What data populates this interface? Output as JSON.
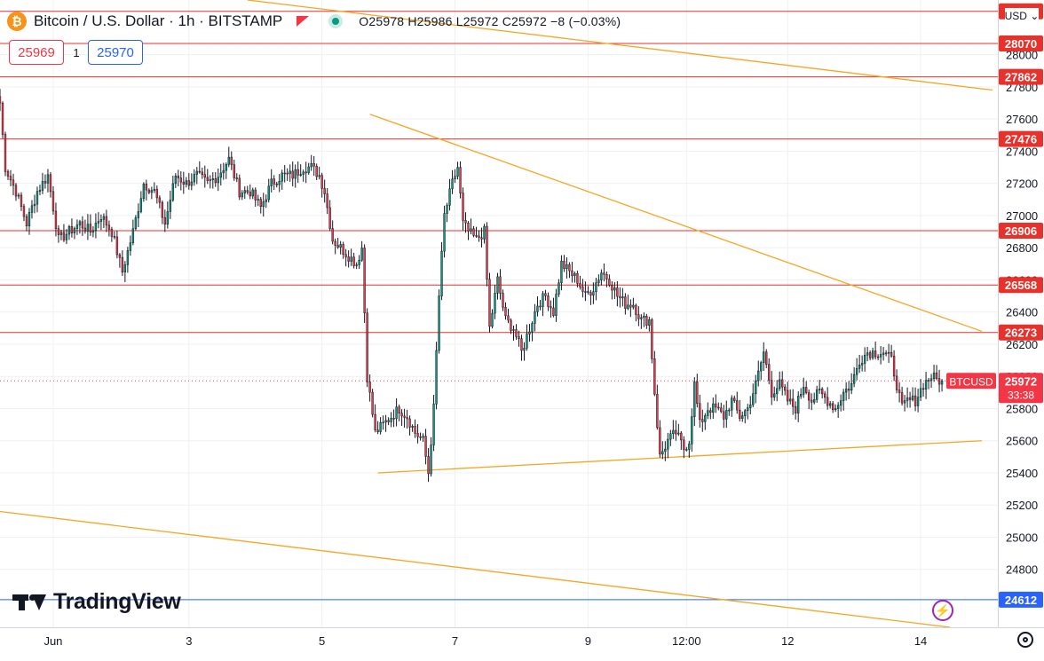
{
  "header": {
    "title": "Bitcoin / U.S. Dollar · 1h · BITSTAMP",
    "coin_symbol": "₿",
    "ohlc": "O25978 H25986 L25972 C25972 −8 (−0.03%)",
    "bid": "25969",
    "spread": "1",
    "ask": "25970",
    "currency": "USD"
  },
  "branding": {
    "name": "TradingView"
  },
  "colors": {
    "up": "#089981",
    "down": "#f23645",
    "level_line": "#e8312b",
    "trendline": "#f5a623",
    "blue_level": "#2962ff",
    "current_price": "#f23645"
  },
  "chart_data": {
    "type": "candlestick",
    "symbol": "BTCUSD",
    "countdown": "33:38",
    "x_range": [
      0,
      375
    ],
    "ylim": [
      24440,
      28340
    ],
    "x_ticks": [
      {
        "x": 20,
        "label": "Jun"
      },
      {
        "x": 71,
        "label": "3"
      },
      {
        "x": 121,
        "label": "5"
      },
      {
        "x": 171,
        "label": "7"
      },
      {
        "x": 221,
        "label": "9"
      },
      {
        "x": 258,
        "label": "12:00"
      },
      {
        "x": 296,
        "label": "12"
      },
      {
        "x": 346,
        "label": "14"
      }
    ],
    "y_ticks": [
      24800,
      25000,
      25200,
      25400,
      25600,
      25800,
      26000,
      26200,
      26400,
      26600,
      26800,
      27000,
      27200,
      27400,
      27600,
      27800,
      28000
    ],
    "support_resistance_levels": [
      28070,
      27862,
      27476,
      26906,
      26568,
      26273
    ],
    "blue_level": 24612,
    "top_level": 28270,
    "current_price": 25972,
    "trendlines": [
      {
        "x1": 93,
        "y1": 28340,
        "x2": 373,
        "y2": 27780
      },
      {
        "x1": 139,
        "y1": 27630,
        "x2": 369,
        "y2": 26280
      },
      {
        "x1": 142,
        "y1": 25400,
        "x2": 369,
        "y2": 25600
      },
      {
        "x1": 0,
        "y1": 25160,
        "x2": 357,
        "y2": 24440
      }
    ],
    "price_path": [
      [
        0,
        27700
      ],
      [
        2,
        27300
      ],
      [
        6,
        27150
      ],
      [
        10,
        26950
      ],
      [
        14,
        27150
      ],
      [
        18,
        27250
      ],
      [
        22,
        26850
      ],
      [
        26,
        26900
      ],
      [
        30,
        26950
      ],
      [
        34,
        26900
      ],
      [
        38,
        27000
      ],
      [
        42,
        26900
      ],
      [
        46,
        26650
      ],
      [
        50,
        26900
      ],
      [
        54,
        27200
      ],
      [
        58,
        27150
      ],
      [
        62,
        26950
      ],
      [
        66,
        27250
      ],
      [
        70,
        27200
      ],
      [
        74,
        27250
      ],
      [
        78,
        27200
      ],
      [
        82,
        27250
      ],
      [
        86,
        27350
      ],
      [
        90,
        27150
      ],
      [
        94,
        27150
      ],
      [
        98,
        27050
      ],
      [
        102,
        27200
      ],
      [
        106,
        27250
      ],
      [
        110,
        27250
      ],
      [
        114,
        27300
      ],
      [
        117,
        27300
      ],
      [
        120,
        27250
      ],
      [
        122,
        27150
      ],
      [
        125,
        26850
      ],
      [
        128,
        26800
      ],
      [
        131,
        26750
      ],
      [
        134,
        26700
      ],
      [
        136,
        26800
      ],
      [
        138,
        26000
      ],
      [
        141,
        25650
      ],
      [
        144,
        25700
      ],
      [
        147,
        25750
      ],
      [
        150,
        25800
      ],
      [
        153,
        25750
      ],
      [
        156,
        25650
      ],
      [
        159,
        25600
      ],
      [
        161,
        25400
      ],
      [
        163,
        25800
      ],
      [
        165,
        26500
      ],
      [
        167,
        27000
      ],
      [
        170,
        27200
      ],
      [
        172,
        27300
      ],
      [
        174,
        26950
      ],
      [
        176,
        26900
      ],
      [
        179,
        26850
      ],
      [
        182,
        26900
      ],
      [
        184,
        26300
      ],
      [
        187,
        26600
      ],
      [
        190,
        26350
      ],
      [
        193,
        26300
      ],
      [
        196,
        26150
      ],
      [
        199,
        26300
      ],
      [
        202,
        26450
      ],
      [
        205,
        26500
      ],
      [
        208,
        26400
      ],
      [
        211,
        26700
      ],
      [
        214,
        26650
      ],
      [
        217,
        26600
      ],
      [
        220,
        26500
      ],
      [
        223,
        26550
      ],
      [
        226,
        26650
      ],
      [
        229,
        26600
      ],
      [
        232,
        26500
      ],
      [
        235,
        26450
      ],
      [
        238,
        26450
      ],
      [
        241,
        26350
      ],
      [
        244,
        26350
      ],
      [
        246,
        25900
      ],
      [
        248,
        25500
      ],
      [
        251,
        25600
      ],
      [
        254,
        25650
      ],
      [
        257,
        25550
      ],
      [
        259,
        25600
      ],
      [
        261,
        25950
      ],
      [
        263,
        25700
      ],
      [
        266,
        25800
      ],
      [
        269,
        25800
      ],
      [
        272,
        25750
      ],
      [
        275,
        25850
      ],
      [
        278,
        25750
      ],
      [
        281,
        25800
      ],
      [
        284,
        25950
      ],
      [
        287,
        26150
      ],
      [
        290,
        25900
      ],
      [
        293,
        25950
      ],
      [
        296,
        25850
      ],
      [
        299,
        25800
      ],
      [
        302,
        25950
      ],
      [
        305,
        25850
      ],
      [
        308,
        25900
      ],
      [
        311,
        25850
      ],
      [
        314,
        25800
      ],
      [
        317,
        25900
      ],
      [
        320,
        25950
      ],
      [
        323,
        26100
      ],
      [
        326,
        26150
      ],
      [
        329,
        26150
      ],
      [
        332,
        26150
      ],
      [
        335,
        26100
      ],
      [
        337,
        25950
      ],
      [
        339,
        25800
      ],
      [
        341,
        25850
      ],
      [
        344,
        25850
      ],
      [
        347,
        25950
      ],
      [
        350,
        26000
      ],
      [
        352,
        25980
      ],
      [
        354,
        25972
      ]
    ]
  }
}
